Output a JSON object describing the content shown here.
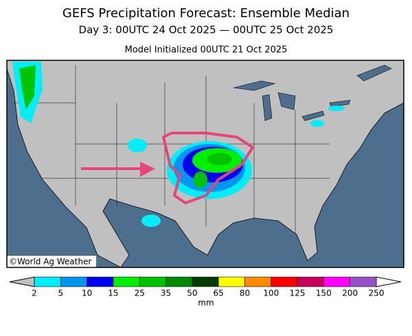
{
  "header": {
    "title": "GEFS Precipitation Forecast: Ensemble Median",
    "subtitle": "Day 3: 00UTC 24 Oct 2025 — 00UTC 25 Oct 2025",
    "initialized": "Model Initialized 00UTC 21 Oct 2025"
  },
  "map": {
    "credit": "©World Ag Weather"
  },
  "legend": {
    "ticks": [
      2,
      5,
      10,
      15,
      25,
      35,
      50,
      65,
      80,
      100,
      125,
      150,
      200,
      250
    ],
    "colors": [
      "#00eef8",
      "#0096f0",
      "#0000f0",
      "#00f000",
      "#00c400",
      "#008a00",
      "#003c00",
      "#ffff00",
      "#ff8c00",
      "#ff0000",
      "#c8005a",
      "#ff00ff",
      "#9650c8"
    ],
    "unit": "mm"
  }
}
